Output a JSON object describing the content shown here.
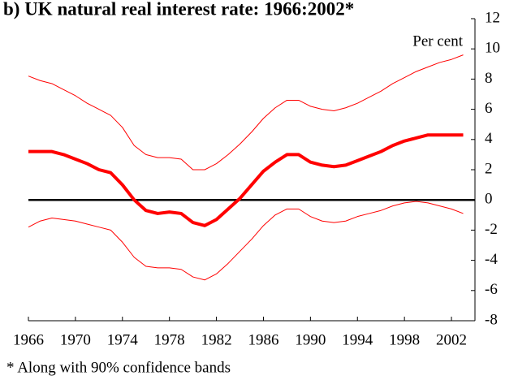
{
  "chart_data": {
    "type": "line",
    "title": "b) UK natural real interest rate: 1966:2002*",
    "y_axis_label": "Per cent",
    "footnote": "* Along with 90% confidence bands",
    "x": [
      1966,
      1967,
      1968,
      1969,
      1970,
      1971,
      1972,
      1973,
      1974,
      1975,
      1976,
      1977,
      1978,
      1979,
      1980,
      1981,
      1982,
      1983,
      1984,
      1985,
      1986,
      1987,
      1988,
      1989,
      1990,
      1991,
      1992,
      1993,
      1994,
      1995,
      1996,
      1997,
      1998,
      1999,
      2000,
      2001,
      2002,
      2003
    ],
    "series": [
      {
        "color": "#ff0000",
        "line_width": 1,
        "values": [
          8.2,
          7.9,
          7.7,
          7.3,
          6.9,
          6.4,
          6.0,
          5.6,
          4.8,
          3.6,
          3.0,
          2.8,
          2.8,
          2.7,
          2.0,
          2.0,
          2.4,
          3.0,
          3.7,
          4.5,
          5.4,
          6.1,
          6.6,
          6.6,
          6.2,
          6.0,
          5.9,
          6.1,
          6.4,
          6.8,
          7.2,
          7.7,
          8.1,
          8.5,
          8.8,
          9.1,
          9.3,
          9.6
        ]
      },
      {
        "color": "#ff0000",
        "line_width": 4,
        "values": [
          3.2,
          3.2,
          3.2,
          3.0,
          2.7,
          2.4,
          2.0,
          1.8,
          1.0,
          0.0,
          -0.7,
          -0.9,
          -0.8,
          -0.9,
          -1.5,
          -1.7,
          -1.3,
          -0.6,
          0.1,
          1.0,
          1.9,
          2.5,
          3.0,
          3.0,
          2.5,
          2.3,
          2.2,
          2.3,
          2.6,
          2.9,
          3.2,
          3.6,
          3.9,
          4.1,
          4.3,
          4.3,
          4.3,
          4.3
        ]
      },
      {
        "color": "#ff0000",
        "line_width": 1,
        "values": [
          -1.8,
          -1.4,
          -1.2,
          -1.3,
          -1.4,
          -1.6,
          -1.8,
          -2.0,
          -2.8,
          -3.8,
          -4.4,
          -4.5,
          -4.5,
          -4.6,
          -5.1,
          -5.3,
          -4.9,
          -4.2,
          -3.4,
          -2.6,
          -1.7,
          -1.0,
          -0.6,
          -0.6,
          -1.1,
          -1.4,
          -1.5,
          -1.4,
          -1.1,
          -0.9,
          -0.7,
          -0.4,
          -0.2,
          -0.1,
          -0.2,
          -0.4,
          -0.6,
          -0.9
        ]
      }
    ],
    "reference_line": {
      "value": 0,
      "color": "#000000"
    },
    "xlim": [
      1966,
      2004
    ],
    "xticks": [
      1966,
      1970,
      1974,
      1978,
      1982,
      1986,
      1990,
      1994,
      1998,
      2002
    ],
    "ylim": [
      -8,
      12
    ],
    "yticks": [
      -8,
      -6,
      -4,
      -2,
      0,
      2,
      4,
      6,
      8,
      10,
      12
    ],
    "y_axis_side": "right",
    "grid": false
  }
}
